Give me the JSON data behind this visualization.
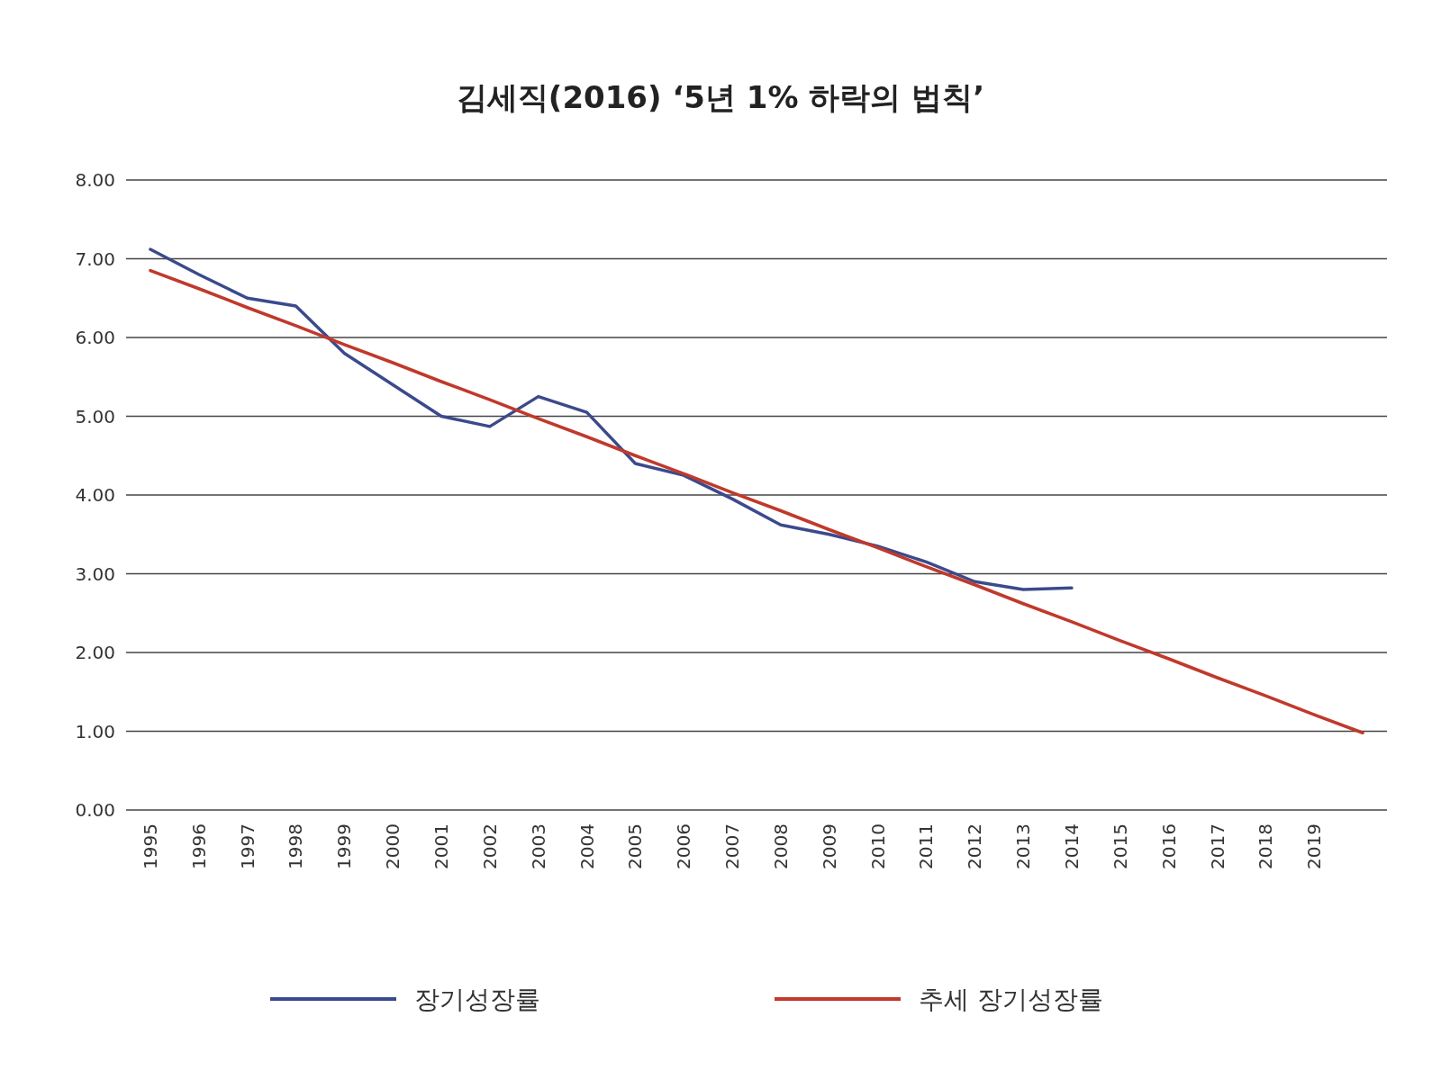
{
  "chart_data": {
    "type": "line",
    "title": "김세직(2016) ‘5년 1% 하락의 법칙’",
    "categories": [
      "1995",
      "1996",
      "1997",
      "1998",
      "1999",
      "2000",
      "2001",
      "2002",
      "2003",
      "2004",
      "2005",
      "2006",
      "2007",
      "2008",
      "2009",
      "2010",
      "2011",
      "2012",
      "2013",
      "2014",
      "2015",
      "2016",
      "2017",
      "2018",
      "2019",
      null
    ],
    "series": [
      {
        "name": "장기성장률",
        "color": "#3b4a8c",
        "values": [
          7.12,
          6.8,
          6.5,
          6.4,
          5.8,
          5.4,
          5.0,
          4.87,
          5.25,
          5.05,
          4.4,
          4.25,
          3.95,
          3.62,
          3.5,
          3.35,
          3.15,
          2.9,
          2.8,
          2.82,
          null,
          null,
          null,
          null,
          null,
          null
        ]
      },
      {
        "name": "추세 장기성장률",
        "color": "#c0392b",
        "values": [
          6.85,
          6.62,
          6.38,
          6.15,
          5.91,
          5.68,
          5.44,
          5.21,
          4.97,
          4.74,
          4.5,
          4.27,
          4.03,
          3.8,
          3.56,
          3.33,
          3.09,
          2.86,
          2.62,
          2.39,
          2.15,
          1.92,
          1.68,
          1.45,
          1.21,
          0.98
        ]
      }
    ],
    "ylim": [
      0,
      8
    ],
    "yticks": [
      {
        "value": 0,
        "label": "0.00"
      },
      {
        "value": 1,
        "label": "1.00"
      },
      {
        "value": 2,
        "label": "2.00"
      },
      {
        "value": 3,
        "label": "3.00"
      },
      {
        "value": 4,
        "label": "4.00"
      },
      {
        "value": 5,
        "label": "5.00"
      },
      {
        "value": 6,
        "label": "6.00"
      },
      {
        "value": 7,
        "label": "7.00"
      },
      {
        "value": 8,
        "label": "8.00"
      }
    ],
    "grid": "y",
    "legend": "bottom",
    "marker": "none",
    "line_style": "solid"
  }
}
